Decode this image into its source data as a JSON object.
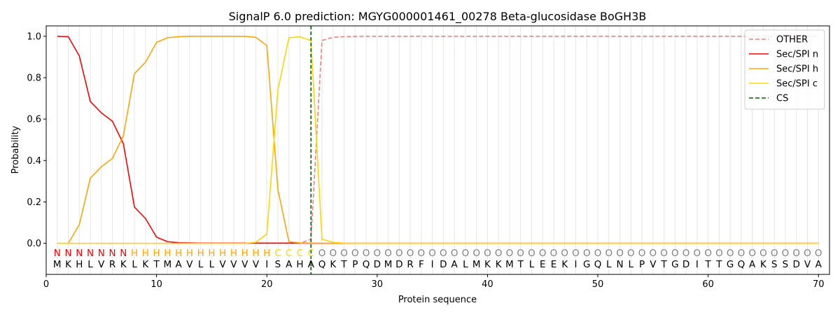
{
  "chart_data": {
    "type": "line",
    "title": "SignalP 6.0 prediction: MGYG000001461_00278 Beta-glucosidase BoGH3B",
    "xlabel": "Protein sequence",
    "ylabel": "Probability",
    "xlim": [
      0,
      71
    ],
    "ylim": [
      -0.15,
      1.05
    ],
    "xticks": [
      0,
      10,
      20,
      30,
      40,
      50,
      60,
      70
    ],
    "yticks": [
      0.0,
      0.2,
      0.4,
      0.6,
      0.8,
      1.0
    ],
    "ytick_labels": [
      "0.0",
      "0.2",
      "0.4",
      "0.6",
      "0.8",
      "1.0"
    ],
    "grid": "vertical lines at each residue",
    "legend_position": "top-right",
    "x": [
      1,
      2,
      3,
      4,
      5,
      6,
      7,
      8,
      9,
      10,
      11,
      12,
      13,
      14,
      15,
      16,
      17,
      18,
      19,
      20,
      21,
      22,
      23,
      24,
      25,
      26,
      27,
      28,
      29,
      30,
      31,
      32,
      33,
      34,
      35,
      36,
      37,
      38,
      39,
      40,
      41,
      42,
      43,
      44,
      45,
      46,
      47,
      48,
      49,
      50,
      51,
      52,
      53,
      54,
      55,
      56,
      57,
      58,
      59,
      60,
      61,
      62,
      63,
      64,
      65,
      66,
      67,
      68,
      69,
      70
    ],
    "series": [
      {
        "name": "OTHER",
        "color": "#f08080",
        "style": "dashed",
        "values": [
          0,
          0,
          0,
          0,
          0,
          0,
          0,
          0,
          0,
          0,
          0,
          0,
          0,
          0,
          0,
          0,
          0,
          0,
          0,
          0,
          0,
          0,
          0,
          0.02,
          0.98,
          0.995,
          0.998,
          0.999,
          1,
          1,
          1,
          1,
          1,
          1,
          1,
          1,
          1,
          1,
          1,
          1,
          1,
          1,
          1,
          1,
          1,
          1,
          1,
          1,
          1,
          1,
          1,
          1,
          1,
          1,
          1,
          1,
          1,
          1,
          1,
          1,
          1,
          1,
          1,
          1,
          1,
          1,
          1,
          1,
          1,
          1
        ]
      },
      {
        "name": "Sec/SPI n",
        "color": "#ff0000",
        "style": "solid",
        "values": [
          1.0,
          0.998,
          0.905,
          0.685,
          0.63,
          0.59,
          0.48,
          0.175,
          0.12,
          0.03,
          0.008,
          0.003,
          0.002,
          0.001,
          0.001,
          0.001,
          0.001,
          0.001,
          0.001,
          0.001,
          0.001,
          0.001,
          0.001,
          0,
          0,
          0,
          0,
          0,
          0,
          0,
          0,
          0,
          0,
          0,
          0,
          0,
          0,
          0,
          0,
          0,
          0,
          0,
          0,
          0,
          0,
          0,
          0,
          0,
          0,
          0,
          0,
          0,
          0,
          0,
          0,
          0,
          0,
          0,
          0,
          0,
          0,
          0,
          0,
          0,
          0,
          0,
          0,
          0,
          0,
          0
        ]
      },
      {
        "name": "Sec/SPI h",
        "color": "#ffa500",
        "style": "solid",
        "values": [
          0,
          0,
          0.09,
          0.315,
          0.37,
          0.41,
          0.52,
          0.82,
          0.875,
          0.97,
          0.993,
          0.998,
          1.0,
          1.0,
          1.0,
          1.0,
          1.0,
          1.0,
          0.995,
          0.955,
          0.26,
          0.008,
          0.002,
          0.001,
          0,
          0,
          0,
          0,
          0,
          0,
          0,
          0,
          0,
          0,
          0,
          0,
          0,
          0,
          0,
          0,
          0,
          0,
          0,
          0,
          0,
          0,
          0,
          0,
          0,
          0,
          0,
          0,
          0,
          0,
          0,
          0,
          0,
          0,
          0,
          0,
          0,
          0,
          0,
          0,
          0,
          0,
          0,
          0,
          0,
          0
        ]
      },
      {
        "name": "Sec/SPI c",
        "color": "#ffd700",
        "style": "solid",
        "values": [
          0,
          0,
          0,
          0,
          0,
          0,
          0,
          0,
          0,
          0,
          0,
          0,
          0,
          0,
          0,
          0,
          0,
          0,
          0.005,
          0.045,
          0.74,
          0.993,
          0.997,
          0.98,
          0.02,
          0.005,
          0.001,
          0,
          0,
          0,
          0,
          0,
          0,
          0,
          0,
          0,
          0,
          0,
          0,
          0,
          0,
          0,
          0,
          0,
          0,
          0,
          0,
          0,
          0,
          0,
          0,
          0,
          0,
          0,
          0,
          0,
          0,
          0,
          0,
          0,
          0,
          0,
          0,
          0,
          0,
          0,
          0,
          0,
          0,
          0
        ]
      }
    ],
    "cs": {
      "name": "CS",
      "x": 24,
      "color": "#006400",
      "style": "dashed"
    },
    "sequence": [
      "M",
      "K",
      "H",
      "L",
      "V",
      "R",
      "K",
      "L",
      "K",
      "T",
      "M",
      "A",
      "V",
      "L",
      "L",
      "V",
      "V",
      "V",
      "V",
      "I",
      "S",
      "A",
      "H",
      "A",
      "Q",
      "K",
      "T",
      "P",
      "Q",
      "D",
      "M",
      "D",
      "R",
      "F",
      "I",
      "D",
      "A",
      "L",
      "M",
      "K",
      "K",
      "M",
      "T",
      "L",
      "E",
      "E",
      "K",
      "I",
      "G",
      "Q",
      "L",
      "N",
      "L",
      "P",
      "V",
      "T",
      "G",
      "D",
      "I",
      "T",
      "T",
      "G",
      "Q",
      "A",
      "K",
      "S",
      "S",
      "D",
      "V",
      "A"
    ],
    "labels": [
      "N",
      "N",
      "N",
      "N",
      "N",
      "N",
      "N",
      "H",
      "H",
      "H",
      "H",
      "H",
      "H",
      "H",
      "H",
      "H",
      "H",
      "H",
      "H",
      "H",
      "C",
      "C",
      "C",
      "C",
      "O",
      "O",
      "O",
      "O",
      "O",
      "O",
      "O",
      "O",
      "O",
      "O",
      "O",
      "O",
      "O",
      "O",
      "O",
      "O",
      "O",
      "O",
      "O",
      "O",
      "O",
      "O",
      "O",
      "O",
      "O",
      "O",
      "O",
      "O",
      "O",
      "O",
      "O",
      "O",
      "O",
      "O",
      "O",
      "O",
      "O",
      "O",
      "O",
      "O",
      "O",
      "O",
      "O",
      "O",
      "O",
      "O"
    ],
    "label_colors": {
      "N": "#ff0000",
      "H": "#ffa500",
      "C": "#ffd700",
      "O": "#808080"
    }
  }
}
